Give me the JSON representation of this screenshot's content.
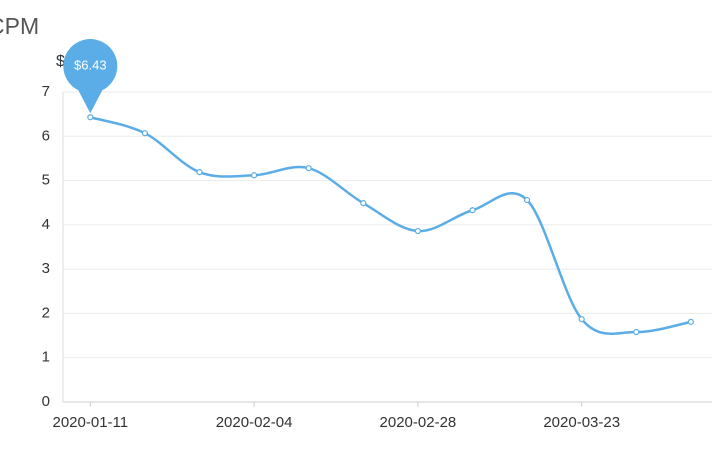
{
  "chart_data": {
    "type": "line",
    "title": "CPM",
    "y_label": "$",
    "categories": [
      "2020-01-11",
      null,
      null,
      "2020-02-04",
      null,
      null,
      "2020-02-28",
      null,
      null,
      "2020-03-23",
      null,
      null
    ],
    "series": [
      {
        "color": "#5aade6",
        "values": [
          6.43,
          6.07,
          5.19,
          5.12,
          5.28,
          4.49,
          3.86,
          4.33,
          4.56,
          1.87,
          1.58,
          1.81
        ],
        "value_labels": [
          "$6.43",
          null,
          null,
          null,
          null,
          null,
          null,
          null,
          null,
          null,
          null,
          null
        ]
      }
    ],
    "ylim": [
      0,
      7
    ],
    "yticks": [
      0,
      1,
      2,
      3,
      4,
      5,
      6,
      7
    ],
    "grid": true,
    "smooth": true
  }
}
